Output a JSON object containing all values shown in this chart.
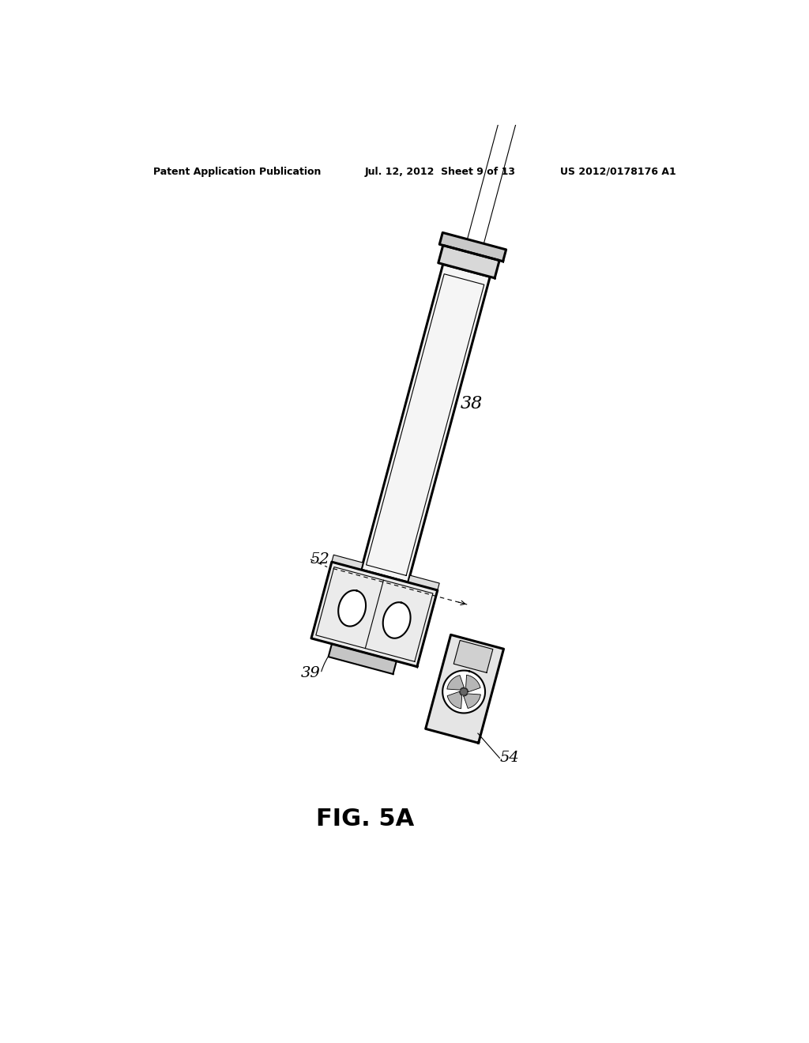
{
  "bg_color": "#ffffff",
  "header_left": "Patent Application Publication",
  "header_center": "Jul. 12, 2012  Sheet 9 of 13",
  "header_right": "US 2012/0178176 A1",
  "figure_label": "FIG. 5A",
  "label_38": "38",
  "label_39": "39",
  "label_52": "52",
  "label_54": "54",
  "lw_thin": 0.8,
  "lw_medium": 1.5,
  "lw_thick": 2.2,
  "dev_rot_deg": 75,
  "dcx": 530,
  "dcy_screen": 490
}
